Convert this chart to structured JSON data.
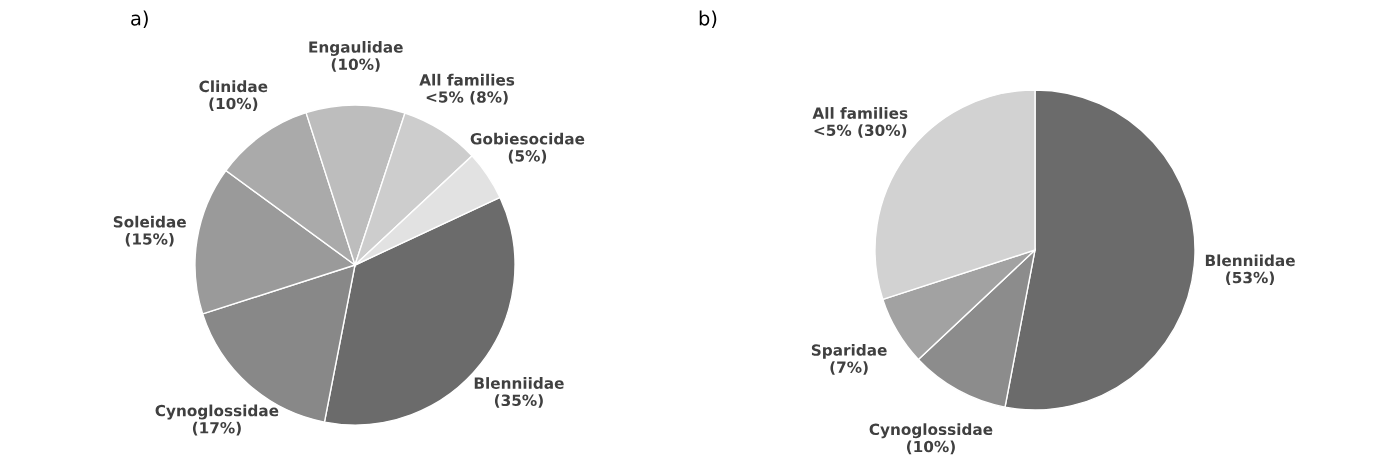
{
  "chart_data": [
    {
      "type": "pie",
      "title": "a)",
      "categories": [
        "Blenniidae",
        "Cynoglossidae",
        "Soleidae",
        "Clinidae",
        "Engaulidae",
        "All families\n<5%",
        "Gobiesocidae"
      ],
      "values": [
        35,
        17,
        15,
        10,
        10,
        8,
        5
      ],
      "value_labels": [
        "(35%)",
        "(17%)",
        "(15%)",
        "(10%)",
        "(10%)",
        "(8%)",
        "(5%)"
      ],
      "colors": [
        "#6b6b6b",
        "#888888",
        "#9a9a9a",
        "#aaaaaa",
        "#bdbdbd",
        "#cdcdcd",
        "#e2e2e2"
      ]
    },
    {
      "type": "pie",
      "title": "b)",
      "categories": [
        "Blenniidae",
        "Cynoglossidae",
        "Sparidae",
        "All families\n<5%"
      ],
      "values": [
        53,
        10,
        7,
        30
      ],
      "value_labels": [
        "(53%)",
        "(10%)",
        "(7%)",
        "(30%)"
      ],
      "colors": [
        "#6b6b6b",
        "#8c8c8c",
        "#a2a2a2",
        "#d2d2d2"
      ]
    }
  ]
}
